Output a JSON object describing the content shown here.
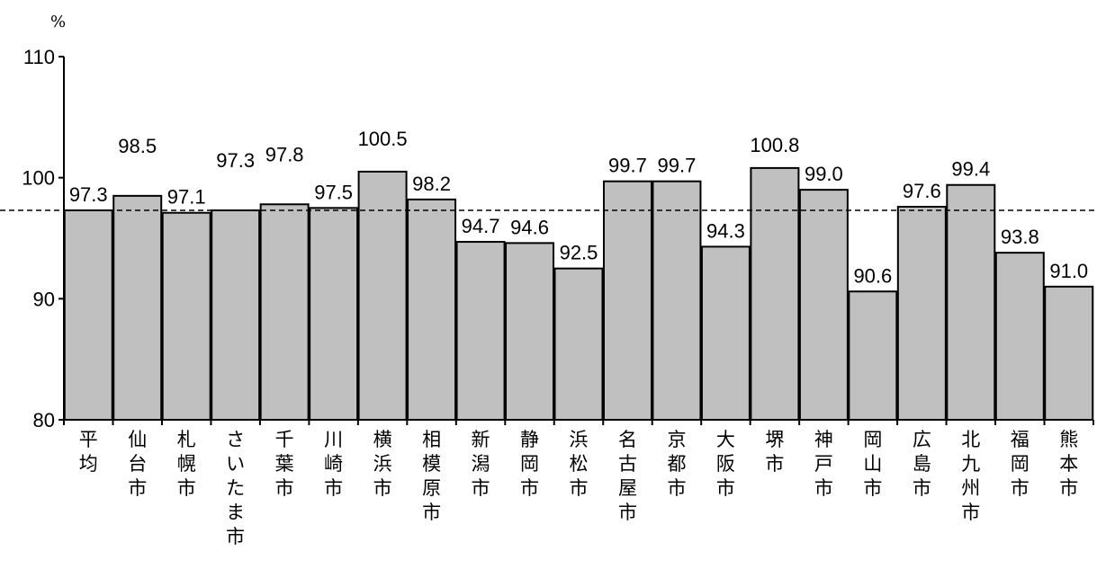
{
  "chart_data": {
    "type": "bar",
    "unit": "%",
    "categories": [
      "平均",
      "仙台市",
      "札幌市",
      "さいたま市",
      "千葉市",
      "川崎市",
      "横浜市",
      "相模原市",
      "新潟市",
      "静岡市",
      "浜松市",
      "名古屋市",
      "京都市",
      "大阪市",
      "堺市",
      "神戸市",
      "岡山市",
      "広島市",
      "北九州市",
      "福岡市",
      "熊本市"
    ],
    "values": [
      97.3,
      98.5,
      97.1,
      97.3,
      97.8,
      97.5,
      100.5,
      98.2,
      94.7,
      94.6,
      92.5,
      99.7,
      99.7,
      94.3,
      100.8,
      99.0,
      90.6,
      97.6,
      99.4,
      93.8,
      91.0
    ],
    "value_labels": [
      "97.3",
      "98.5",
      "97.1",
      "97.3",
      "97.8",
      "97.5",
      "100.5",
      "98.2",
      "94.7",
      "94.6",
      "92.5",
      "99.7",
      "99.7",
      "94.3",
      "100.8",
      "99.0",
      "90.6",
      "97.6",
      "99.4",
      "93.8",
      "91.0"
    ],
    "ylim": [
      80,
      110
    ],
    "yticks": [
      "80",
      "90",
      "100",
      "110"
    ],
    "reference_line": {
      "value": 97.3,
      "style": "dashed"
    },
    "bar_color": "#c0c0c0",
    "grid": false,
    "legend": "none"
  }
}
